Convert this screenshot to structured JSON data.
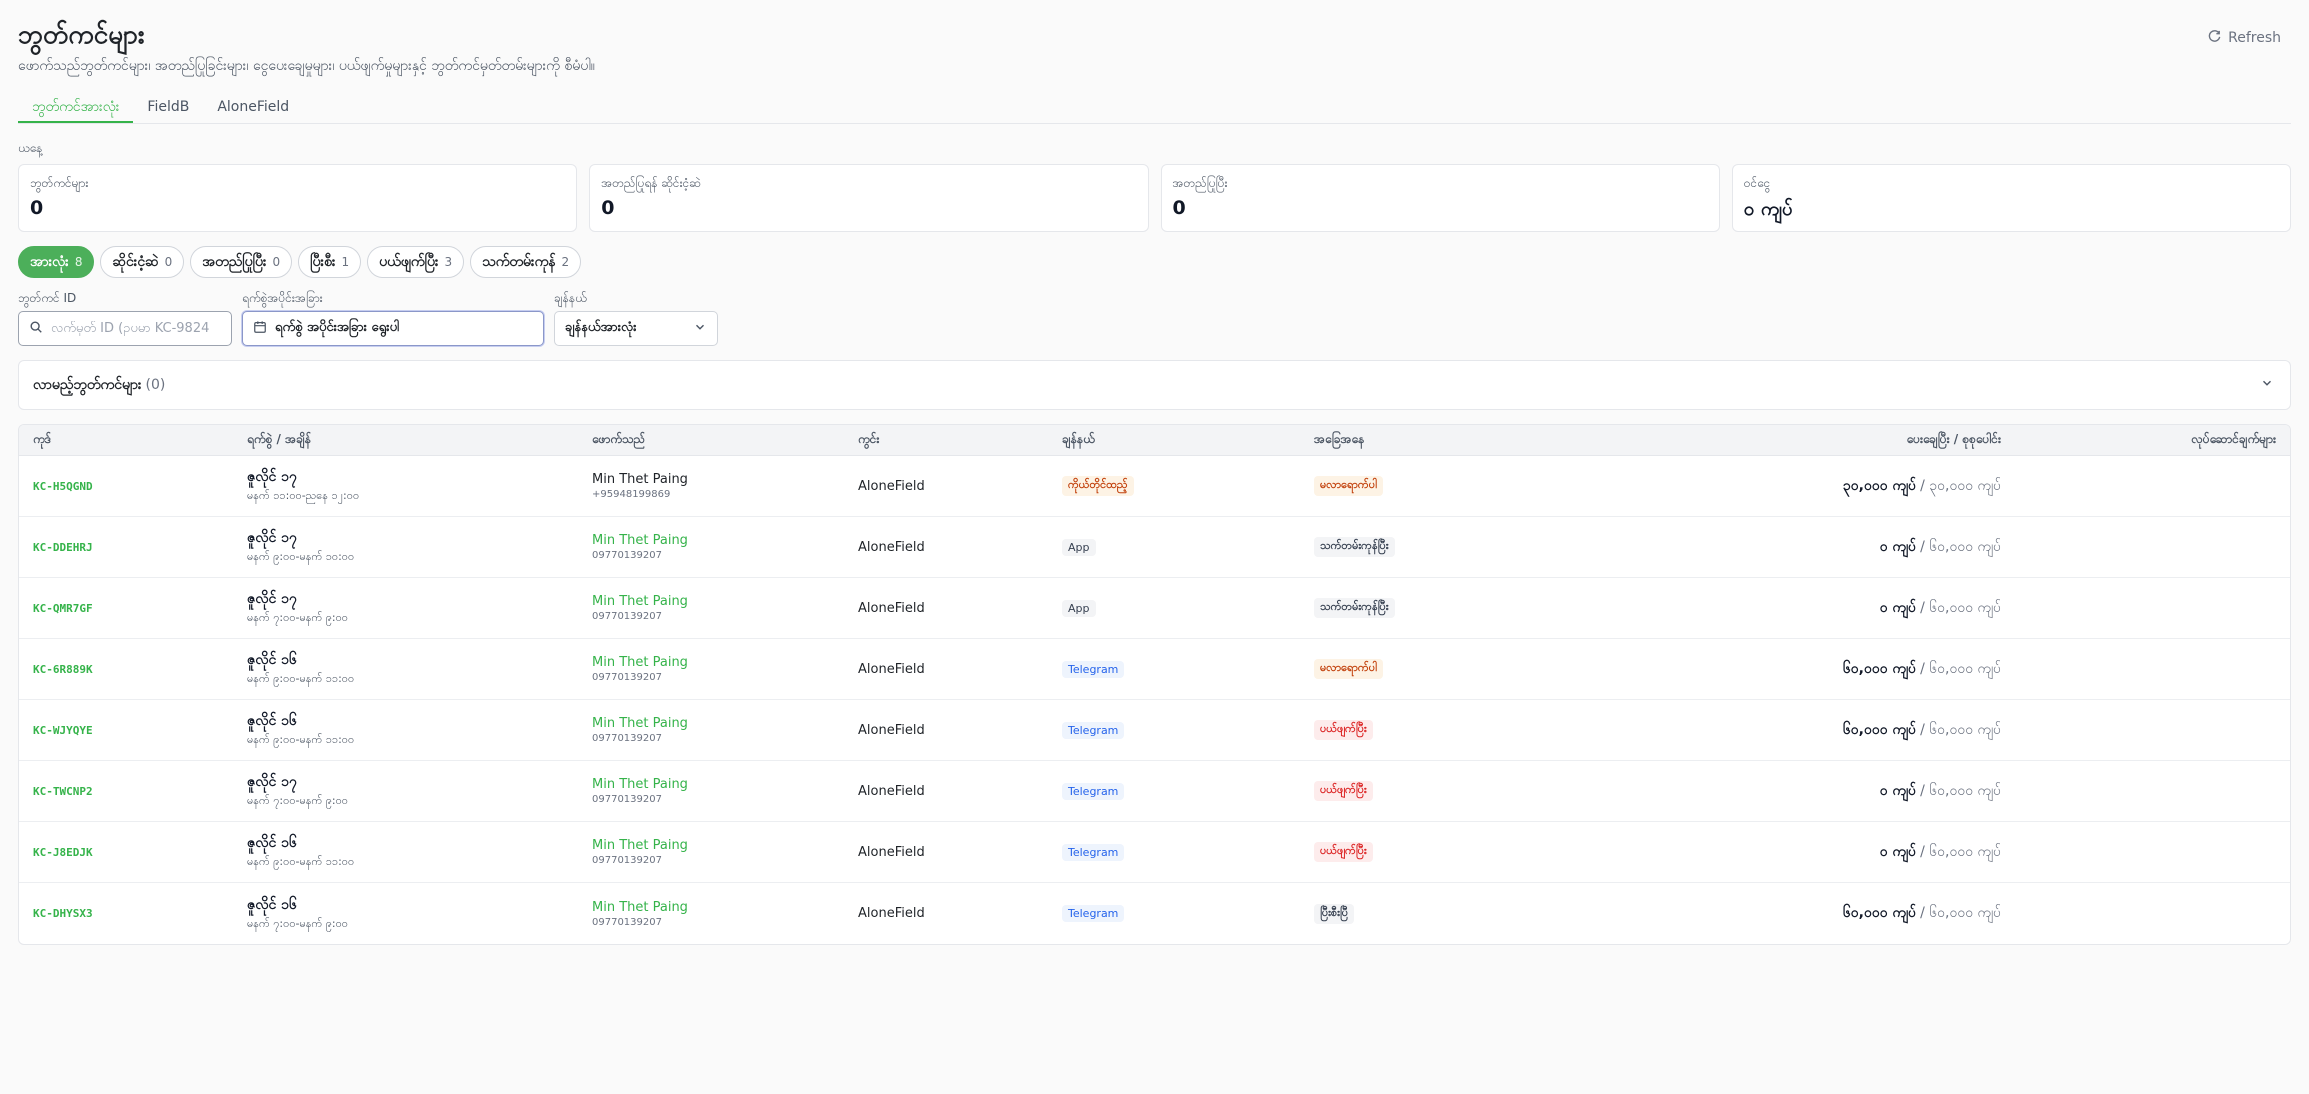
{
  "header": {
    "title": "ဘွတ်ကင်များ",
    "subtitle": "ဖောက်သည်ဘွတ်ကင်များ၊ အတည်ပြုခြင်းများ၊ ငွေပေးချေမှုများ၊ ပယ်ဖျက်မှုများနှင့် ဘွတ်ကင်မှတ်တမ်းများကို စီမံပါ။",
    "refresh_label": "Refresh"
  },
  "tabs": [
    {
      "label": "ဘွတ်ကင်အားလုံး",
      "active": true
    },
    {
      "label": "FieldB",
      "active": false
    },
    {
      "label": "AloneField",
      "active": false
    }
  ],
  "today_label": "ယနေ့",
  "stats": [
    {
      "label": "ဘွတ်ကင်များ",
      "value": "0"
    },
    {
      "label": "အတည်ပြုရန် ဆိုင်းငံ့ဆဲ",
      "value": "0"
    },
    {
      "label": "အတည်ပြုပြီး",
      "value": "0"
    },
    {
      "label": "ဝင်ငွေ",
      "value": "၀ ကျပ်"
    }
  ],
  "status_pills": [
    {
      "label": "အားလုံး",
      "count": "8",
      "active": true
    },
    {
      "label": "ဆိုင်းငံ့ဆဲ",
      "count": "0",
      "active": false
    },
    {
      "label": "အတည်ပြုပြီး",
      "count": "0",
      "active": false
    },
    {
      "label": "ပြီးစီး",
      "count": "1",
      "active": false
    },
    {
      "label": "ပယ်ဖျက်ပြီး",
      "count": "3",
      "active": false
    },
    {
      "label": "သက်တမ်းကုန်",
      "count": "2",
      "active": false
    }
  ],
  "filters": {
    "booking_id_label": "ဘွတ်ကင် ID",
    "booking_id_placeholder": "လက်မှတ် ID (ဥပမာ KC-9824",
    "date_range_label": "ရက်စွဲအပိုင်းအခြား",
    "date_range_value": "ရက်စွဲ အပိုင်းအခြား ရွေးပါ",
    "channel_label": "ချန်နယ်",
    "channel_value": "ချန်နယ်အားလုံး"
  },
  "upcoming": {
    "title": "လာမည့်ဘွတ်ကင်များ",
    "count": "(0)"
  },
  "table": {
    "headers": [
      "ကုဒ်",
      "ရက်စွဲ / အချိန်",
      "ဖောက်သည်",
      "ကွင်း",
      "ချန်နယ်",
      "အခြေအနေ",
      "ပေးချေပြီး / စုစုပေါင်း",
      "လုပ်ဆောင်ချက်များ"
    ],
    "rows": [
      {
        "code": "KC-H5QGND",
        "date": "ဇူလိုင် ၁၇",
        "time": "မနက် ၁၁:၀၀-ညနေ ၁၂:၀၀",
        "customer": "Min Thet Paing",
        "phone": "+95948199869",
        "field": "AloneField",
        "channel": "ကိုယ်တိုင်ထည့်",
        "status": "မလာရောက်ပါ",
        "paid": "၃၀,၀၀၀ ကျပ်",
        "total": "/ ၃၀,၀၀၀ ကျပ်"
      },
      {
        "code": "KC-DDEHRJ",
        "date": "ဇူလိုင် ၁၇",
        "time": "မနက် ၉:၀၀-မနက် ၁၀:၀၀",
        "customer": "Min Thet Paing",
        "phone": "09770139207",
        "field": "AloneField",
        "channel": "App",
        "status": "သက်တမ်းကုန်ပြီး",
        "paid": "၀ ကျပ်",
        "total": "/ ၆၀,၀၀၀ ကျပ်"
      },
      {
        "code": "KC-QMR7GF",
        "date": "ဇူလိုင် ၁၇",
        "time": "မနက် ၇:၀၀-မနက် ၉:၀၀",
        "customer": "Min Thet Paing",
        "phone": "09770139207",
        "field": "AloneField",
        "channel": "App",
        "status": "သက်တမ်းကုန်ပြီး",
        "paid": "၀ ကျပ်",
        "total": "/ ၆၀,၀၀၀ ကျပ်"
      },
      {
        "code": "KC-6R889K",
        "date": "ဇူလိုင် ၁၆",
        "time": "မနက် ၉:၀၀-မနက် ၁၁:၀၀",
        "customer": "Min Thet Paing",
        "phone": "09770139207",
        "field": "AloneField",
        "channel": "Telegram",
        "status": "မလာရောက်ပါ",
        "paid": "၆၀,၀၀၀ ကျပ်",
        "total": "/ ၆၀,၀၀၀ ကျပ်"
      },
      {
        "code": "KC-WJYQYE",
        "date": "ဇူလိုင် ၁၆",
        "time": "မနက် ၉:၀၀-မနက် ၁၁:၀၀",
        "customer": "Min Thet Paing",
        "phone": "09770139207",
        "field": "AloneField",
        "channel": "Telegram",
        "status": "ပယ်ဖျက်ပြီး",
        "paid": "၆၀,၀၀၀ ကျပ်",
        "total": "/ ၆၀,၀၀၀ ကျပ်"
      },
      {
        "code": "KC-TWCNP2",
        "date": "ဇူလိုင် ၁၇",
        "time": "မနက် ၇:၀၀-မနက် ၉:၀၀",
        "customer": "Min Thet Paing",
        "phone": "09770139207",
        "field": "AloneField",
        "channel": "Telegram",
        "status": "ပယ်ဖျက်ပြီး",
        "paid": "၀ ကျပ်",
        "total": "/ ၆၀,၀၀၀ ကျပ်"
      },
      {
        "code": "KC-J8EDJK",
        "date": "ဇူလိုင် ၁၆",
        "time": "မနက် ၉:၀၀-မနက် ၁၁:၀၀",
        "customer": "Min Thet Paing",
        "phone": "09770139207",
        "field": "AloneField",
        "channel": "Telegram",
        "status": "ပယ်ဖျက်ပြီး",
        "paid": "၀ ကျပ်",
        "total": "/ ၆၀,၀၀၀ ကျပ်"
      },
      {
        "code": "KC-DHYSX3",
        "date": "ဇူလိုင် ၁၆",
        "time": "မနက် ၇:၀၀-မနက် ၉:၀၀",
        "customer": "Min Thet Paing",
        "phone": "09770139207",
        "field": "AloneField",
        "channel": "Telegram",
        "status": "ပြီးစီးပြီ",
        "paid": "၆၀,၀၀၀ ကျပ်",
        "total": "/ ၆၀,၀၀၀ ကျပ်"
      }
    ]
  },
  "colors": {
    "accent": "#35b34a",
    "orange": "#c2410c",
    "red": "#dc2626",
    "blue": "#2563eb"
  }
}
